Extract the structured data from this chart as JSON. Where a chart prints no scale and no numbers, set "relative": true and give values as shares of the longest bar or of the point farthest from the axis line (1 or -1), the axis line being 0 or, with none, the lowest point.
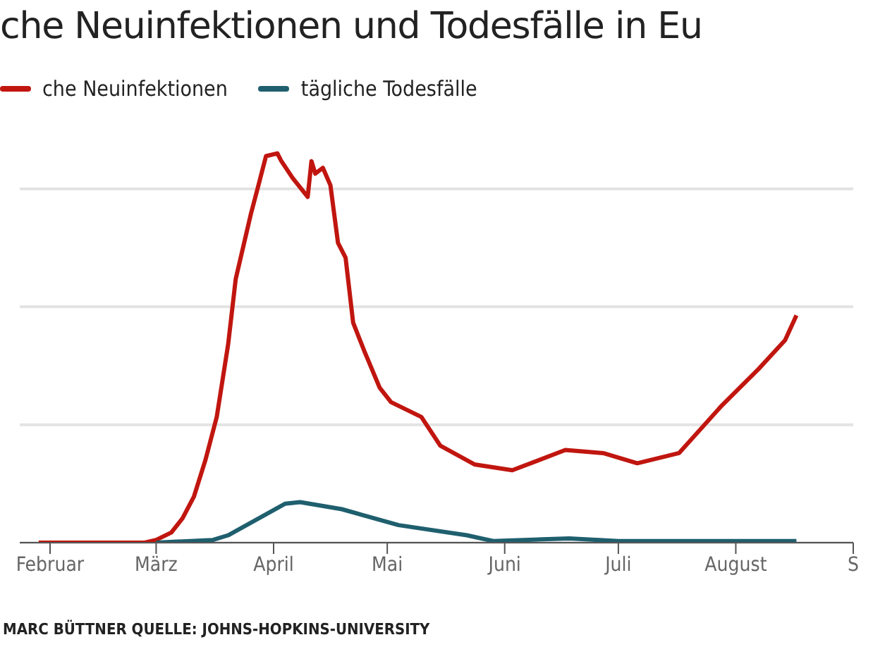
{
  "chart_data": {
    "type": "line",
    "title": "che Neuinfektionen und Todesfälle in Eu",
    "relative": true,
    "grid": "y",
    "legend": "top left",
    "xlim": [
      "--01-24",
      "--09-01"
    ],
    "xticks": [
      {
        "value": "--02-01",
        "label": "Februar"
      },
      {
        "value": "--03-01",
        "label": "März"
      },
      {
        "value": "--04-01",
        "label": "April"
      },
      {
        "value": "--05-01",
        "label": "Mai"
      },
      {
        "value": "--06-01",
        "label": "Juni"
      },
      {
        "value": "--07-01",
        "label": "Juli"
      },
      {
        "value": "--08-01",
        "label": "August"
      },
      {
        "value": "--09-01",
        "label": "S"
      }
    ],
    "annotations": [
      "MARC BÜTTNER QUELLE: JOHNS-HOPKINS-UNIVERSITY"
    ],
    "series": [
      {
        "name": "che Neuinfektionen",
        "color": "#c0160f",
        "x": [
          "--01-29",
          "--02-26",
          "--03-01",
          "--03-05",
          "--03-08",
          "--03-11",
          "--03-14",
          "--03-17",
          "--03-20",
          "--03-22",
          "--03-26",
          "--03-28",
          "--03-30",
          "--04-02",
          "--04-03",
          "--04-06",
          "--04-10",
          "--04-11",
          "--04-12",
          "--04-14",
          "--04-16",
          "--04-18",
          "--04-20",
          "--04-22",
          "--04-25",
          "--04-29",
          "--05-02",
          "--05-10",
          "--05-15",
          "--05-24",
          "--06-03",
          "--06-17",
          "--06-27",
          "--07-06",
          "--07-17",
          "--07-28",
          "--08-07",
          "--08-14",
          "--08-17"
        ],
        "values": [
          0,
          0,
          0.007,
          0.026,
          0.063,
          0.119,
          0.212,
          0.323,
          0.509,
          0.677,
          0.844,
          0.918,
          0.993,
          1,
          0.981,
          0.937,
          0.888,
          0.98,
          0.948,
          0.963,
          0.918,
          0.77,
          0.732,
          0.565,
          0.491,
          0.398,
          0.361,
          0.323,
          0.249,
          0.201,
          0.186,
          0.238,
          0.23,
          0.204,
          0.23,
          0.349,
          0.446,
          0.52,
          0.584
        ]
      },
      {
        "name": "tägliche Todesfälle",
        "color": "#1f5f6e",
        "x": [
          "--03-01",
          "--03-16",
          "--03-20",
          "--04-04",
          "--04-08",
          "--04-19",
          "--05-04",
          "--05-22",
          "--05-29",
          "--06-18",
          "--07-01",
          "--08-17"
        ],
        "values": [
          0,
          0.007,
          0.019,
          0.1,
          0.104,
          0.086,
          0.045,
          0.019,
          0.004,
          0.011,
          0.004,
          0.004
        ]
      }
    ]
  }
}
